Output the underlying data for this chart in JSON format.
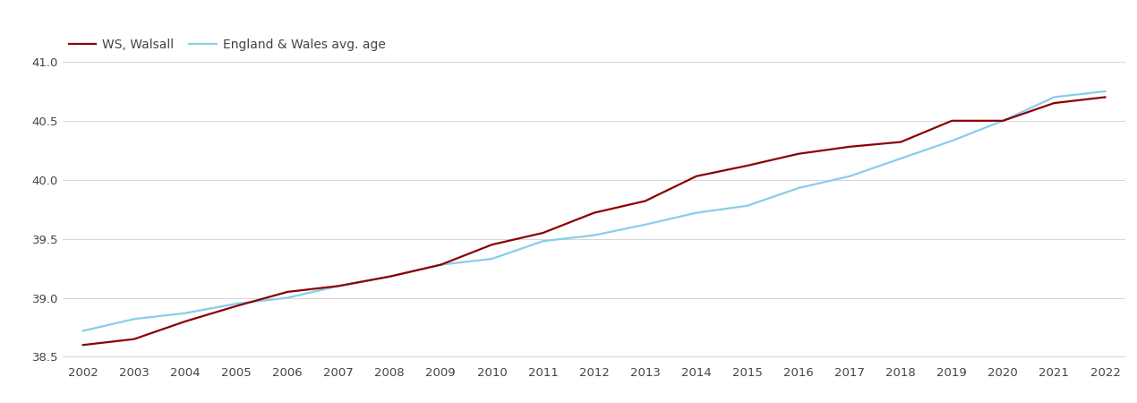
{
  "years": [
    2002,
    2003,
    2004,
    2005,
    2006,
    2007,
    2008,
    2009,
    2010,
    2011,
    2012,
    2013,
    2014,
    2015,
    2016,
    2017,
    2018,
    2019,
    2020,
    2021,
    2022
  ],
  "walsall": [
    38.6,
    38.65,
    38.8,
    38.93,
    39.05,
    39.1,
    39.18,
    39.28,
    39.45,
    39.55,
    39.72,
    39.82,
    40.03,
    40.12,
    40.22,
    40.28,
    40.32,
    40.5,
    40.5,
    40.65,
    40.7
  ],
  "england_wales": [
    38.72,
    38.82,
    38.87,
    38.95,
    39.0,
    39.1,
    39.18,
    39.28,
    39.33,
    39.48,
    39.53,
    39.62,
    39.72,
    39.78,
    39.93,
    40.03,
    40.18,
    40.33,
    40.5,
    40.7,
    40.75
  ],
  "walsall_color": "#8B0000",
  "england_wales_color": "#87CEEB",
  "walsall_label": "WS, Walsall",
  "england_wales_label": "England & Wales avg. age",
  "ylim": [
    38.45,
    41.25
  ],
  "yticks": [
    38.5,
    39.0,
    39.5,
    40.0,
    40.5,
    41.0
  ],
  "background_color": "#ffffff",
  "grid_color": "#d0d0d0",
  "line_width": 1.6,
  "tick_label_color": "#444444",
  "legend_fontsize": 10,
  "axis_fontsize": 9.5
}
